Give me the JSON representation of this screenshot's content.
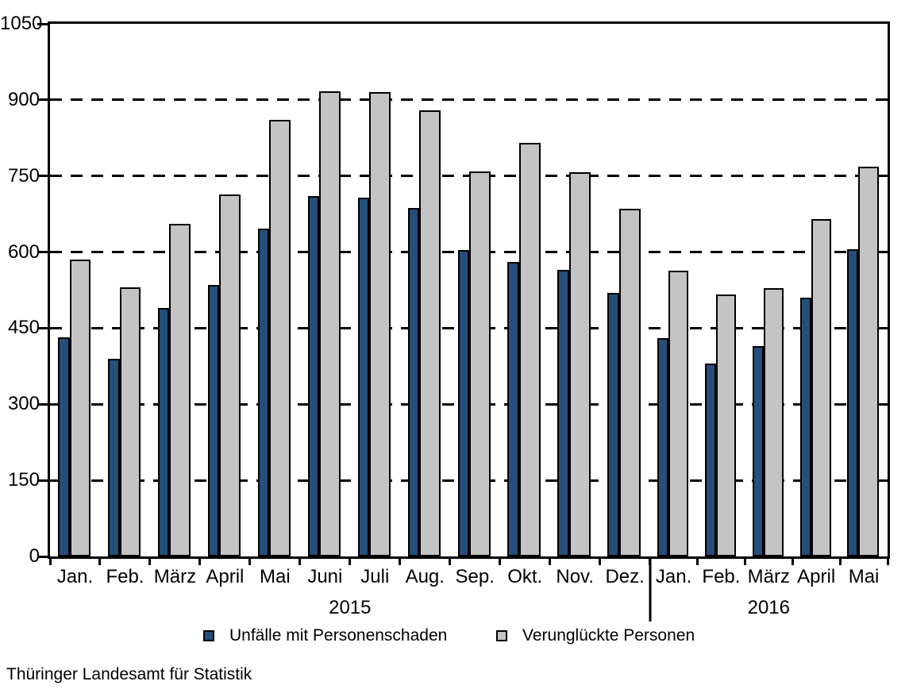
{
  "chart_data": {
    "type": "bar",
    "title": "",
    "categories": [
      "Jan.",
      "Feb.",
      "März",
      "April",
      "Mai",
      "Juni",
      "Juli",
      "Aug.",
      "Sep.",
      "Okt.",
      "Nov.",
      "Dez.",
      "Jan.",
      "Feb.",
      "März",
      "April",
      "Mai"
    ],
    "year_sections": [
      {
        "label": "2015",
        "span": 12
      },
      {
        "label": "2016",
        "span": 5
      }
    ],
    "series": [
      {
        "name": "Unfälle mit Personenschaden",
        "color": "#254E78",
        "values": [
          432,
          390,
          490,
          535,
          646,
          710,
          707,
          687,
          604,
          580,
          565,
          519,
          430,
          380,
          415,
          510,
          605
        ]
      },
      {
        "name": "Verunglückte Personen",
        "color": "#C4C4C4",
        "values": [
          585,
          530,
          655,
          714,
          860,
          917,
          916,
          880,
          759,
          815,
          757,
          685,
          563,
          517,
          529,
          665,
          769
        ]
      }
    ],
    "ylim": [
      0,
      1050
    ],
    "ytick_step": 150,
    "yticks": [
      0,
      150,
      300,
      450,
      600,
      750,
      900,
      1050
    ],
    "ytick_labels": [
      "0",
      "150",
      "300",
      "450",
      "600",
      "750",
      "900",
      "1050"
    ],
    "grid": "horizontal dashed black",
    "legend_position": "bottom",
    "bar_outline_color": "#000000",
    "frame_color": "#000000",
    "background_color": "#FFFFFF"
  },
  "legend": {
    "items": [
      {
        "label": "Unfälle mit Personenschaden"
      },
      {
        "label": "Verunglückte Personen"
      }
    ]
  },
  "source": {
    "text": "Thüringer Landesamt für Statistik"
  }
}
